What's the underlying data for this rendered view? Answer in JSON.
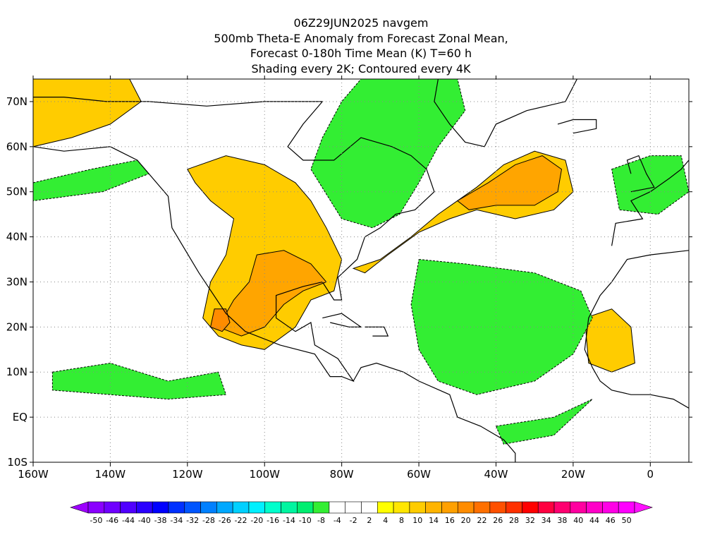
{
  "titles": {
    "line1": "06Z29JUN2025 navgem",
    "line2": "500mb Theta-E Anomaly from Forecast Zonal Mean,",
    "line3": "Forecast 0-180h Time Mean (K) T=60 h",
    "line4": "Shading every 2K; Contoured every 4K"
  },
  "map": {
    "lon_range": [
      -160,
      10
    ],
    "lat_range": [
      -10,
      75
    ],
    "lon_ticks": [
      {
        "value": -160,
        "label": "160W"
      },
      {
        "value": -140,
        "label": "140W"
      },
      {
        "value": -120,
        "label": "120W"
      },
      {
        "value": -100,
        "label": "100W"
      },
      {
        "value": -80,
        "label": "80W"
      },
      {
        "value": -60,
        "label": "60W"
      },
      {
        "value": -40,
        "label": "40W"
      },
      {
        "value": -20,
        "label": "20W"
      },
      {
        "value": 0,
        "label": "0"
      }
    ],
    "lat_ticks": [
      {
        "value": 70,
        "label": "70N"
      },
      {
        "value": 60,
        "label": "60N"
      },
      {
        "value": 50,
        "label": "50N"
      },
      {
        "value": 40,
        "label": "40N"
      },
      {
        "value": 30,
        "label": "30N"
      },
      {
        "value": 20,
        "label": "20N"
      },
      {
        "value": 10,
        "label": "10N"
      },
      {
        "value": 0,
        "label": "EQ"
      },
      {
        "value": -10,
        "label": "10S"
      }
    ],
    "grid_lines": "dotted",
    "features": [
      {
        "name": "anomaly-north-atlantic-warm",
        "level": 8,
        "color": "#ffcc00",
        "pts": [
          [
            -77,
            33
          ],
          [
            -70,
            35
          ],
          [
            -62,
            40
          ],
          [
            -55,
            45
          ],
          [
            -45,
            51
          ],
          [
            -38,
            56
          ],
          [
            -30,
            59
          ],
          [
            -22,
            57
          ],
          [
            -20,
            50
          ],
          [
            -25,
            46
          ],
          [
            -35,
            44
          ],
          [
            -45,
            46
          ],
          [
            -52,
            44
          ],
          [
            -60,
            41
          ],
          [
            -68,
            36
          ],
          [
            -74,
            32
          ]
        ]
      },
      {
        "name": "anomaly-north-atlantic-core",
        "level": 14,
        "color": "#ffa500",
        "pts": [
          [
            -50,
            48
          ],
          [
            -42,
            52
          ],
          [
            -35,
            56
          ],
          [
            -28,
            58
          ],
          [
            -23,
            55
          ],
          [
            -24,
            50
          ],
          [
            -30,
            47
          ],
          [
            -40,
            47
          ],
          [
            -47,
            46
          ]
        ]
      },
      {
        "name": "anomaly-us-mexico-warm",
        "level": 8,
        "color": "#ffcc00",
        "pts": [
          [
            -120,
            55
          ],
          [
            -110,
            58
          ],
          [
            -100,
            56
          ],
          [
            -92,
            52
          ],
          [
            -88,
            48
          ],
          [
            -84,
            42
          ],
          [
            -80,
            35
          ],
          [
            -82,
            28
          ],
          [
            -88,
            26
          ],
          [
            -92,
            20
          ],
          [
            -100,
            15
          ],
          [
            -106,
            16
          ],
          [
            -112,
            18
          ],
          [
            -116,
            22
          ],
          [
            -114,
            30
          ],
          [
            -110,
            36
          ],
          [
            -108,
            44
          ],
          [
            -114,
            48
          ],
          [
            -118,
            52
          ]
        ]
      },
      {
        "name": "anomaly-us-mexico-core",
        "level": 14,
        "color": "#ffa500",
        "pts": [
          [
            -102,
            36
          ],
          [
            -95,
            37
          ],
          [
            -88,
            34
          ],
          [
            -84,
            30
          ],
          [
            -90,
            28
          ],
          [
            -95,
            25
          ],
          [
            -100,
            20
          ],
          [
            -106,
            18
          ],
          [
            -112,
            20
          ],
          [
            -108,
            26
          ],
          [
            -104,
            30
          ]
        ]
      },
      {
        "name": "anomaly-baja-max",
        "level": 20,
        "color": "#ff8c00",
        "pts": [
          [
            -113,
            24
          ],
          [
            -110,
            24
          ],
          [
            -109,
            21
          ],
          [
            -111,
            19
          ],
          [
            -114,
            20
          ]
        ]
      },
      {
        "name": "anomaly-alaska-warm",
        "level": 8,
        "color": "#ffcc00",
        "pts": [
          [
            -160,
            75
          ],
          [
            -135,
            75
          ],
          [
            -132,
            70
          ],
          [
            -140,
            65
          ],
          [
            -150,
            62
          ],
          [
            -160,
            60
          ]
        ]
      },
      {
        "name": "anomaly-west-africa-warm",
        "level": 8,
        "color": "#ffcc00",
        "pts": [
          [
            -17,
            22
          ],
          [
            -10,
            24
          ],
          [
            -5,
            20
          ],
          [
            -4,
            12
          ],
          [
            -10,
            10
          ],
          [
            -16,
            12
          ]
        ]
      },
      {
        "name": "anomaly-greenland-labrador-cool",
        "level": -8,
        "color": "#33ee33",
        "pts": [
          [
            -75,
            75
          ],
          [
            -50,
            75
          ],
          [
            -48,
            68
          ],
          [
            -55,
            60
          ],
          [
            -60,
            52
          ],
          [
            -65,
            45
          ],
          [
            -72,
            42
          ],
          [
            -80,
            44
          ],
          [
            -88,
            55
          ],
          [
            -85,
            62
          ],
          [
            -80,
            70
          ]
        ]
      },
      {
        "name": "anomaly-central-atlantic-cool",
        "level": -8,
        "color": "#33ee33",
        "pts": [
          [
            -60,
            35
          ],
          [
            -48,
            34
          ],
          [
            -30,
            32
          ],
          [
            -18,
            28
          ],
          [
            -15,
            22
          ],
          [
            -20,
            14
          ],
          [
            -30,
            8
          ],
          [
            -45,
            5
          ],
          [
            -55,
            8
          ],
          [
            -60,
            15
          ],
          [
            -62,
            25
          ]
        ]
      },
      {
        "name": "anomaly-pacific-band-cool",
        "level": -8,
        "color": "#33ee33",
        "pts": [
          [
            -155,
            10
          ],
          [
            -140,
            12
          ],
          [
            -125,
            8
          ],
          [
            -112,
            10
          ],
          [
            -110,
            5
          ],
          [
            -125,
            4
          ],
          [
            -140,
            5
          ],
          [
            -155,
            6
          ]
        ]
      },
      {
        "name": "anomaly-ne-pacific-cool",
        "level": -8,
        "color": "#33ee33",
        "pts": [
          [
            -160,
            52
          ],
          [
            -145,
            55
          ],
          [
            -133,
            57
          ],
          [
            -130,
            54
          ],
          [
            -142,
            50
          ],
          [
            -160,
            48
          ]
        ]
      },
      {
        "name": "anomaly-europe-cool",
        "level": -8,
        "color": "#33ee33",
        "pts": [
          [
            -10,
            55
          ],
          [
            0,
            58
          ],
          [
            8,
            58
          ],
          [
            10,
            50
          ],
          [
            2,
            45
          ],
          [
            -8,
            46
          ]
        ]
      },
      {
        "name": "anomaly-tropical-atlantic-cool",
        "level": -8,
        "color": "#33ee33",
        "pts": [
          [
            -40,
            -2
          ],
          [
            -25,
            0
          ],
          [
            -15,
            4
          ],
          [
            -25,
            -4
          ],
          [
            -38,
            -6
          ]
        ]
      }
    ],
    "land_outlines": [
      {
        "name": "north-america-coast",
        "pts": [
          [
            -160,
            60
          ],
          [
            -152,
            59
          ],
          [
            -140,
            60
          ],
          [
            -133,
            57
          ],
          [
            -125,
            49
          ],
          [
            -124,
            42
          ],
          [
            -117,
            32
          ],
          [
            -110,
            23
          ],
          [
            -105,
            19
          ],
          [
            -96,
            16
          ],
          [
            -87,
            14
          ],
          [
            -83,
            9
          ],
          [
            -80,
            9
          ],
          [
            -77,
            8
          ],
          [
            -81,
            13
          ],
          [
            -87,
            16
          ],
          [
            -88,
            21
          ],
          [
            -92,
            19
          ],
          [
            -97,
            22
          ],
          [
            -97,
            27
          ],
          [
            -90,
            29
          ],
          [
            -85,
            30
          ],
          [
            -82,
            26
          ],
          [
            -80,
            26
          ],
          [
            -81,
            31
          ],
          [
            -76,
            35
          ],
          [
            -74,
            40
          ],
          [
            -70,
            42
          ],
          [
            -66,
            45
          ],
          [
            -61,
            46
          ],
          [
            -56,
            50
          ],
          [
            -58,
            55
          ],
          [
            -62,
            58
          ],
          [
            -67,
            60
          ],
          [
            -75,
            62
          ],
          [
            -82,
            57
          ],
          [
            -90,
            57
          ],
          [
            -94,
            60
          ],
          [
            -90,
            65
          ],
          [
            -85,
            70
          ],
          [
            -100,
            70
          ],
          [
            -115,
            69
          ],
          [
            -130,
            70
          ],
          [
            -141,
            70
          ],
          [
            -152,
            71
          ],
          [
            -160,
            71
          ]
        ]
      },
      {
        "name": "greenland-coast",
        "pts": [
          [
            -55,
            75
          ],
          [
            -56,
            70
          ],
          [
            -52,
            65
          ],
          [
            -48,
            61
          ],
          [
            -43,
            60
          ],
          [
            -40,
            65
          ],
          [
            -32,
            68
          ],
          [
            -22,
            70
          ],
          [
            -19,
            75
          ]
        ]
      },
      {
        "name": "south-america-coast",
        "pts": [
          [
            -77,
            8
          ],
          [
            -75,
            11
          ],
          [
            -71,
            12
          ],
          [
            -64,
            10
          ],
          [
            -60,
            8
          ],
          [
            -52,
            5
          ],
          [
            -50,
            0
          ],
          [
            -44,
            -2
          ],
          [
            -38,
            -5
          ],
          [
            -35,
            -8
          ],
          [
            -35,
            -10
          ]
        ]
      },
      {
        "name": "africa-coast",
        "pts": [
          [
            10,
            37
          ],
          [
            0,
            36
          ],
          [
            -6,
            35
          ],
          [
            -10,
            30
          ],
          [
            -13,
            27
          ],
          [
            -16,
            22
          ],
          [
            -17,
            15
          ],
          [
            -15,
            11
          ],
          [
            -13,
            8
          ],
          [
            -10,
            6
          ],
          [
            -5,
            5
          ],
          [
            0,
            5
          ],
          [
            6,
            4
          ],
          [
            10,
            2
          ]
        ]
      },
      {
        "name": "europe-coast",
        "pts": [
          [
            -10,
            38
          ],
          [
            -9,
            43
          ],
          [
            -2,
            44
          ],
          [
            -5,
            48
          ],
          [
            0,
            50
          ],
          [
            5,
            53
          ],
          [
            8,
            55
          ],
          [
            10,
            57
          ]
        ]
      },
      {
        "name": "cuba-outline",
        "pts": [
          [
            -85,
            22
          ],
          [
            -80,
            23
          ],
          [
            -75,
            20
          ],
          [
            -78,
            20
          ],
          [
            -83,
            21
          ]
        ]
      },
      {
        "name": "hispaniola-outline",
        "pts": [
          [
            -74,
            20
          ],
          [
            -69,
            20
          ],
          [
            -68,
            18
          ],
          [
            -72,
            18
          ]
        ]
      },
      {
        "name": "uk-outline",
        "pts": [
          [
            -5,
            50
          ],
          [
            1,
            51
          ],
          [
            -1,
            54
          ],
          [
            -3,
            58
          ],
          [
            -6,
            57
          ],
          [
            -5,
            54
          ]
        ]
      },
      {
        "name": "iceland-outline",
        "pts": [
          [
            -24,
            65
          ],
          [
            -20,
            66
          ],
          [
            -14,
            66
          ],
          [
            -14,
            64
          ],
          [
            -20,
            63
          ]
        ]
      }
    ]
  },
  "colorbar": {
    "levels": [
      {
        "label": "-50",
        "color": "#8a00ff"
      },
      {
        "label": "-46",
        "color": "#6f00ff"
      },
      {
        "label": "-44",
        "color": "#5000ff"
      },
      {
        "label": "-40",
        "color": "#2a00ff"
      },
      {
        "label": "-38",
        "color": "#0000ff"
      },
      {
        "label": "-34",
        "color": "#0030ff"
      },
      {
        "label": "-32",
        "color": "#0055ff"
      },
      {
        "label": "-28",
        "color": "#0080ff"
      },
      {
        "label": "-26",
        "color": "#00a8ff"
      },
      {
        "label": "-22",
        "color": "#00d0ff"
      },
      {
        "label": "-20",
        "color": "#00f0ff"
      },
      {
        "label": "-16",
        "color": "#00ffcc"
      },
      {
        "label": "-14",
        "color": "#00f5a0"
      },
      {
        "label": "-10",
        "color": "#00ee70"
      },
      {
        "label": "-8",
        "color": "#33ee33"
      },
      {
        "label": "-4",
        "color": "#ffffff"
      },
      {
        "label": "-2",
        "color": "#ffffff"
      },
      {
        "label": "2",
        "color": "#ffffff"
      },
      {
        "label": "4",
        "color": "#ffff00"
      },
      {
        "label": "8",
        "color": "#ffe600"
      },
      {
        "label": "10",
        "color": "#ffcc00"
      },
      {
        "label": "14",
        "color": "#ffb400"
      },
      {
        "label": "16",
        "color": "#ffa000"
      },
      {
        "label": "20",
        "color": "#ff8c00"
      },
      {
        "label": "22",
        "color": "#ff7000"
      },
      {
        "label": "26",
        "color": "#ff5000"
      },
      {
        "label": "28",
        "color": "#ff3000"
      },
      {
        "label": "32",
        "color": "#ff0000"
      },
      {
        "label": "34",
        "color": "#ff0040"
      },
      {
        "label": "38",
        "color": "#ff0070"
      },
      {
        "label": "40",
        "color": "#ff00a0"
      },
      {
        "label": "44",
        "color": "#ff00c8"
      },
      {
        "label": "46",
        "color": "#ff00e6"
      },
      {
        "label": "50",
        "color": "#ff00ff"
      }
    ],
    "low_end_color": "#9d00ff",
    "high_end_color": "#ff10ff"
  }
}
